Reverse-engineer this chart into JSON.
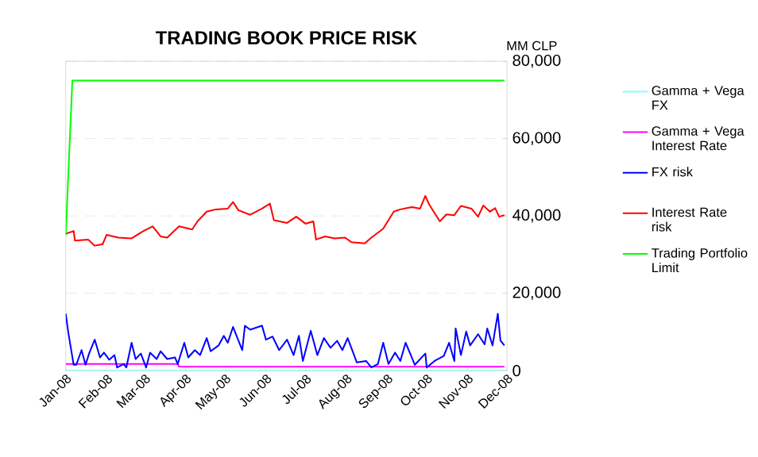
{
  "chart_data": {
    "type": "line",
    "title": "TRADING BOOK PRICE RISK",
    "ylabel": "MM CLP",
    "xlim": [
      "2008-01-01",
      "2008-12-01"
    ],
    "xticks": [
      {
        "value": "2008-01-01",
        "label": "Jan-08"
      },
      {
        "value": "2008-02-01",
        "label": "Feb-08"
      },
      {
        "value": "2008-03-01",
        "label": "Mar-08"
      },
      {
        "value": "2008-04-01",
        "label": "Apr-08"
      },
      {
        "value": "2008-05-01",
        "label": "May-08"
      },
      {
        "value": "2008-06-01",
        "label": "Jun-08"
      },
      {
        "value": "2008-07-01",
        "label": "Jul-08"
      },
      {
        "value": "2008-08-01",
        "label": "Aug-08"
      },
      {
        "value": "2008-09-01",
        "label": "Sep-08"
      },
      {
        "value": "2008-10-01",
        "label": "Oct-08"
      },
      {
        "value": "2008-11-01",
        "label": "Nov-08"
      },
      {
        "value": "2008-12-01",
        "label": "Dec-08"
      }
    ],
    "ylim": [
      0,
      80000
    ],
    "yticks": [
      {
        "value": 0,
        "label": "0"
      },
      {
        "value": 20000,
        "label": "20,000"
      },
      {
        "value": 40000,
        "label": "40,000"
      },
      {
        "value": 60000,
        "label": "60,000"
      },
      {
        "value": 80000,
        "label": "80,000"
      }
    ],
    "grid": "y",
    "legend": "right",
    "series": [
      {
        "name": "Gamma + Vega FX",
        "color": "#80ffff",
        "x": [
          "2008-01-01",
          "2008-11-29"
        ],
        "values": [
          0,
          0
        ]
      },
      {
        "name": "Gamma + Vega Interest Rate",
        "color": "#ff00ff",
        "x": [
          "2008-01-01",
          "2008-03-26",
          "2008-03-27",
          "2008-11-29"
        ],
        "values": [
          1700,
          1700,
          1000,
          1000
        ]
      },
      {
        "name": "FX risk",
        "color": "#0000ff",
        "x": [
          "2008-01-01",
          "2008-01-03",
          "2008-01-07",
          "2008-01-09",
          "2008-01-13",
          "2008-01-16",
          "2008-01-19",
          "2008-01-23",
          "2008-01-27",
          "2008-01-30",
          "2008-02-03",
          "2008-02-07",
          "2008-02-09",
          "2008-02-14",
          "2008-02-16",
          "2008-02-20",
          "2008-02-23",
          "2008-02-27",
          "2008-03-02",
          "2008-03-05",
          "2008-03-10",
          "2008-03-13",
          "2008-03-18",
          "2008-03-24",
          "2008-03-26",
          "2008-03-31",
          "2008-04-03",
          "2008-04-08",
          "2008-04-12",
          "2008-04-17",
          "2008-04-20",
          "2008-04-26",
          "2008-04-30",
          "2008-05-03",
          "2008-05-07",
          "2008-05-14",
          "2008-05-16",
          "2008-05-20",
          "2008-05-29",
          "2008-06-01",
          "2008-06-06",
          "2008-06-11",
          "2008-06-17",
          "2008-06-22",
          "2008-06-26",
          "2008-06-29",
          "2008-07-05",
          "2008-07-10",
          "2008-07-15",
          "2008-07-20",
          "2008-07-25",
          "2008-07-29",
          "2008-08-02",
          "2008-08-09",
          "2008-08-16",
          "2008-08-20",
          "2008-08-25",
          "2008-08-29",
          "2008-09-02",
          "2008-09-07",
          "2008-09-11",
          "2008-09-15",
          "2008-09-19",
          "2008-09-22",
          "2008-09-30",
          "2008-10-01",
          "2008-10-07",
          "2008-10-14",
          "2008-10-18",
          "2008-10-22",
          "2008-10-23",
          "2008-10-27",
          "2008-10-31",
          "2008-11-03",
          "2008-11-09",
          "2008-11-14",
          "2008-11-16",
          "2008-11-20",
          "2008-11-24",
          "2008-11-26",
          "2008-11-29"
        ],
        "values": [
          14700,
          9700,
          1500,
          1500,
          5300,
          1500,
          4650,
          8000,
          3400,
          4650,
          2800,
          4000,
          800,
          1700,
          800,
          7200,
          3000,
          4400,
          800,
          4650,
          3000,
          5000,
          3000,
          3400,
          1700,
          7200,
          3400,
          5300,
          4000,
          8400,
          5000,
          6500,
          9000,
          7200,
          11300,
          5300,
          11600,
          10600,
          11600,
          8000,
          8800,
          5300,
          8000,
          4000,
          9000,
          2500,
          10300,
          4000,
          8400,
          5900,
          7700,
          5300,
          8400,
          2100,
          2500,
          800,
          1700,
          7200,
          1700,
          4650,
          2500,
          7200,
          4000,
          1500,
          4400,
          800,
          2500,
          3800,
          7200,
          2500,
          10900,
          4000,
          10100,
          6500,
          9400,
          6800,
          10900,
          6500,
          14700,
          7800,
          6500
        ]
      },
      {
        "name": "Interest Rate risk",
        "color": "#ff0000",
        "x": [
          "2008-01-01",
          "2008-01-07",
          "2008-01-08",
          "2008-01-18",
          "2008-01-23",
          "2008-01-29",
          "2008-02-01",
          "2008-02-10",
          "2008-02-20",
          "2008-02-29",
          "2008-03-07",
          "2008-03-13",
          "2008-03-18",
          "2008-03-27",
          "2008-04-06",
          "2008-04-10",
          "2008-04-17",
          "2008-04-24",
          "2008-05-03",
          "2008-05-07",
          "2008-05-11",
          "2008-05-20",
          "2008-05-29",
          "2008-06-04",
          "2008-06-07",
          "2008-06-17",
          "2008-06-24",
          "2008-07-01",
          "2008-07-07",
          "2008-07-09",
          "2008-07-16",
          "2008-07-23",
          "2008-07-31",
          "2008-08-05",
          "2008-08-15",
          "2008-08-20",
          "2008-08-29",
          "2008-09-06",
          "2008-09-11",
          "2008-09-20",
          "2008-09-26",
          "2008-09-30",
          "2008-10-03",
          "2008-10-11",
          "2008-10-16",
          "2008-10-22",
          "2008-10-27",
          "2008-11-04",
          "2008-11-09",
          "2008-11-13",
          "2008-11-18",
          "2008-11-22",
          "2008-11-25",
          "2008-11-29"
        ],
        "values": [
          35400,
          36100,
          33600,
          33900,
          32300,
          32700,
          35100,
          34400,
          34200,
          36100,
          37300,
          34700,
          34400,
          37300,
          36500,
          38600,
          41100,
          41700,
          41900,
          43600,
          41500,
          40300,
          41900,
          43200,
          38900,
          38200,
          39800,
          38000,
          38600,
          33900,
          34700,
          34200,
          34400,
          33200,
          32900,
          34400,
          36700,
          41100,
          41700,
          42300,
          41900,
          45200,
          42900,
          38600,
          40400,
          40200,
          42600,
          41900,
          39800,
          42700,
          41100,
          42000,
          39800,
          40200
        ]
      },
      {
        "name": "Trading Portfolio Limit",
        "color": "#00ff00",
        "x": [
          "2008-01-01",
          "2008-01-06",
          "2008-11-29"
        ],
        "values": [
          35000,
          75000,
          75000
        ]
      }
    ]
  }
}
